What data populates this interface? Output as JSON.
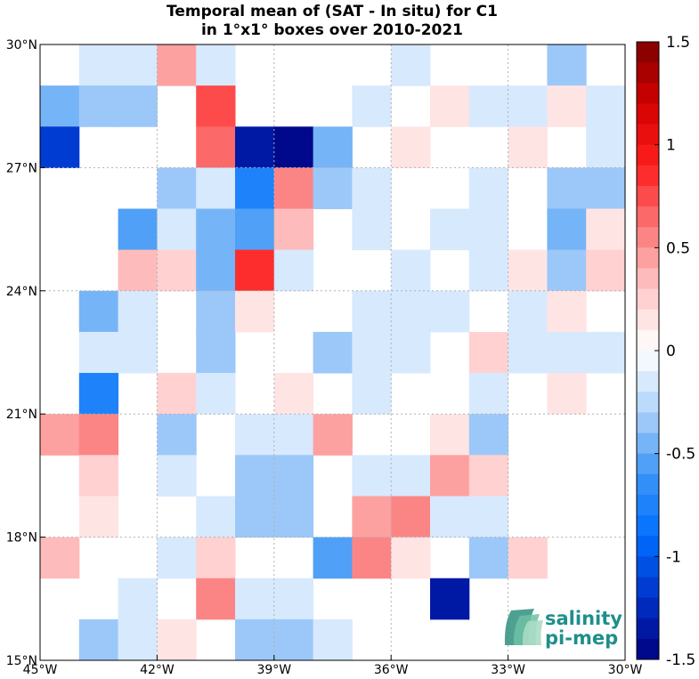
{
  "chart_data": {
    "type": "heatmap",
    "title": [
      "Temporal mean of (SAT - In situ) for C1",
      "in 1°x1° boxes over 2010-2021"
    ],
    "x_tick_labels": [
      "45°W",
      "42°W",
      "39°W",
      "36°W",
      "33°W",
      "30°W"
    ],
    "y_tick_labels": [
      "30°N",
      "27°N",
      "24°N",
      "21°N",
      "18°N",
      "15°N"
    ],
    "lon_range": [
      -45,
      -30
    ],
    "lat_range": [
      15,
      30
    ],
    "grid": true,
    "colorbar": {
      "min": -1.5,
      "max": 1.5,
      "tick_labels": [
        "1.5",
        "1",
        "0.5",
        "0",
        "-0.5",
        "-1",
        "-1.5"
      ],
      "tick_values": [
        1.5,
        1,
        0.5,
        0,
        -0.5,
        -1,
        -1.5
      ],
      "placement": "right"
    },
    "rows_lat_top": [
      30,
      29,
      28,
      27,
      26,
      25,
      24,
      23,
      22,
      21,
      20,
      19,
      18,
      17,
      16
    ],
    "cols_lon_left": [
      -45,
      -44,
      -43,
      -42,
      -41,
      -40,
      -39,
      -38,
      -37,
      -36,
      -35,
      -34,
      -33,
      -32,
      -31
    ],
    "values": [
      [
        null,
        -0.2,
        -0.1,
        0.4,
        -0.2,
        null,
        null,
        null,
        null,
        -0.1,
        null,
        null,
        null,
        -0.3,
        null
      ],
      [
        -0.5,
        -0.3,
        -0.4,
        null,
        0.75,
        null,
        null,
        null,
        -0.1,
        null,
        0.1,
        -0.1,
        -0.2,
        0.1,
        -0.2
      ],
      [
        -1.1,
        null,
        null,
        null,
        0.6,
        -1.4,
        -1.5,
        -0.5,
        null,
        0.1,
        null,
        null,
        0.1,
        null,
        -0.1
      ],
      [
        null,
        null,
        null,
        -0.3,
        -0.1,
        -0.75,
        0.5,
        -0.3,
        -0.1,
        null,
        null,
        -0.1,
        null,
        -0.3,
        -0.4
      ],
      [
        null,
        null,
        -0.6,
        -0.1,
        -0.5,
        -0.6,
        0.35,
        null,
        -0.1,
        null,
        -0.1,
        -0.1,
        null,
        -0.45,
        0.1
      ],
      [
        null,
        null,
        0.35,
        0.25,
        -0.5,
        0.9,
        -0.1,
        null,
        null,
        -0.2,
        null,
        -0.1,
        0.1,
        -0.35,
        0.25
      ],
      [
        null,
        -0.45,
        -0.1,
        null,
        -0.3,
        0.1,
        null,
        null,
        -0.1,
        -0.1,
        -0.1,
        null,
        -0.1,
        0.1,
        null
      ],
      [
        null,
        -0.2,
        -0.1,
        null,
        -0.3,
        null,
        null,
        -0.3,
        -0.2,
        -0.2,
        null,
        0.25,
        -0.1,
        -0.1,
        -0.1
      ],
      [
        null,
        -0.75,
        null,
        0.25,
        -0.1,
        null,
        0.1,
        null,
        -0.2,
        null,
        null,
        -0.1,
        null,
        0.1,
        null
      ],
      [
        0.4,
        0.5,
        null,
        -0.3,
        null,
        -0.1,
        -0.1,
        0.4,
        null,
        null,
        0.1,
        -0.3,
        null,
        null,
        null
      ],
      [
        null,
        0.25,
        null,
        -0.1,
        null,
        -0.4,
        -0.3,
        null,
        -0.1,
        -0.1,
        0.4,
        0.25,
        null,
        null,
        null
      ],
      [
        null,
        0.1,
        null,
        null,
        -0.2,
        -0.4,
        -0.3,
        null,
        0.4,
        0.5,
        -0.1,
        -0.1,
        null,
        null,
        null
      ],
      [
        0.35,
        null,
        null,
        -0.2,
        0.25,
        null,
        null,
        -0.55,
        0.5,
        0.1,
        null,
        -0.3,
        0.25,
        null,
        null
      ],
      [
        null,
        null,
        -0.2,
        null,
        0.5,
        -0.2,
        -0.2,
        null,
        null,
        null,
        -1.3,
        null,
        null,
        null,
        null
      ],
      [
        null,
        -0.3,
        -0.2,
        0.1,
        null,
        -0.3,
        -0.3,
        -0.2,
        null,
        null,
        null,
        null,
        null,
        null,
        null
      ]
    ]
  },
  "brand": {
    "line1": "salinity",
    "line2": "pi-mep"
  },
  "colors": {
    "neg_max": "#00007f",
    "pos_max": "#7f0000",
    "grid": "#b0b0b0",
    "brand": "#1f8f8a"
  }
}
